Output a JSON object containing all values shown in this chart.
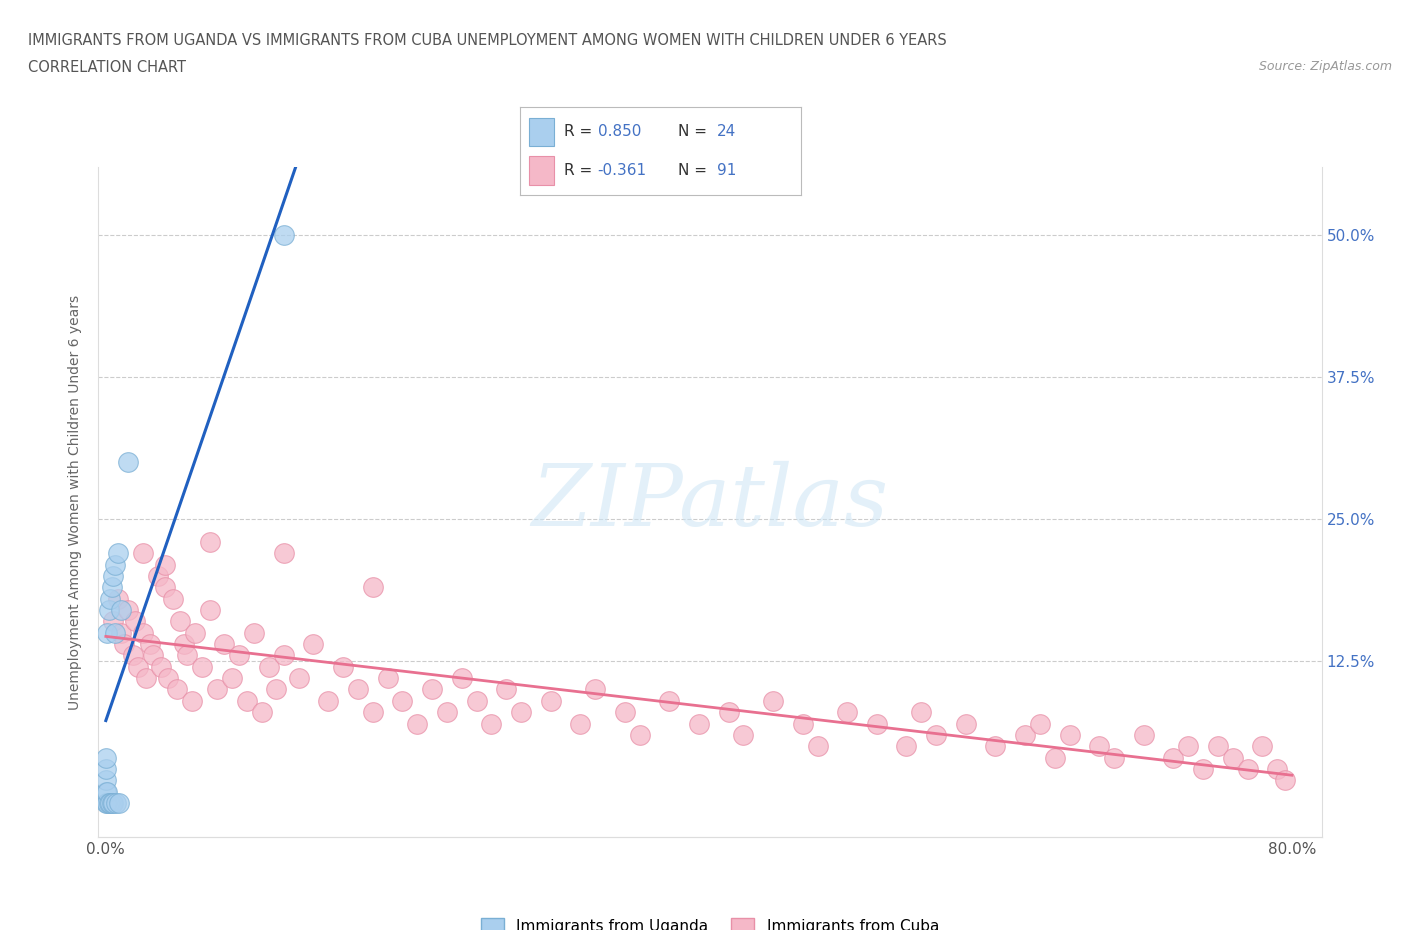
{
  "title_line1": "IMMIGRANTS FROM UGANDA VS IMMIGRANTS FROM CUBA UNEMPLOYMENT AMONG WOMEN WITH CHILDREN UNDER 6 YEARS",
  "title_line2": "CORRELATION CHART",
  "source": "Source: ZipAtlas.com",
  "ylabel": "Unemployment Among Women with Children Under 6 years",
  "xlim": [
    -0.005,
    0.82
  ],
  "ylim": [
    -0.03,
    0.56
  ],
  "xtick_vals": [
    0.0,
    0.2,
    0.4,
    0.6,
    0.8
  ],
  "xticklabels": [
    "0.0%",
    "",
    "",
    "",
    "80.0%"
  ],
  "ytick_vals": [
    0.0,
    0.125,
    0.25,
    0.375,
    0.5
  ],
  "yticklabels_right": [
    "",
    "12.5%",
    "25.0%",
    "37.5%",
    "50.0%"
  ],
  "uganda_color": "#aacfee",
  "uganda_edge_color": "#7aafd4",
  "cuba_color": "#f5b8c8",
  "cuba_edge_color": "#e890a8",
  "uganda_line_color": "#2060c0",
  "cuba_line_color": "#e87090",
  "watermark_text": "ZIPatlas",
  "legend_label_uganda": "Immigrants from Uganda",
  "legend_label_cuba": "Immigrants from Cuba",
  "legend_uganda_color": "#aacfee",
  "legend_cuba_color": "#f5b8c8",
  "uganda_R": "0.850",
  "uganda_N": "24",
  "cuba_R": "-0.361",
  "cuba_N": "91",
  "uganda_x": [
    0.0,
    0.0,
    0.0,
    0.0,
    0.0,
    0.001,
    0.001,
    0.001,
    0.002,
    0.002,
    0.003,
    0.003,
    0.004,
    0.004,
    0.005,
    0.005,
    0.006,
    0.006,
    0.007,
    0.008,
    0.009,
    0.01,
    0.015,
    0.12
  ],
  "uganda_y": [
    0.0,
    0.01,
    0.02,
    0.03,
    0.04,
    0.0,
    0.01,
    0.15,
    0.0,
    0.17,
    0.0,
    0.18,
    0.0,
    0.19,
    0.0,
    0.2,
    0.15,
    0.21,
    0.0,
    0.22,
    0.0,
    0.17,
    0.3,
    0.5
  ],
  "cuba_x": [
    0.005,
    0.008,
    0.01,
    0.012,
    0.015,
    0.018,
    0.02,
    0.022,
    0.025,
    0.027,
    0.03,
    0.032,
    0.035,
    0.037,
    0.04,
    0.042,
    0.045,
    0.048,
    0.05,
    0.053,
    0.055,
    0.058,
    0.06,
    0.065,
    0.07,
    0.075,
    0.08,
    0.085,
    0.09,
    0.095,
    0.1,
    0.105,
    0.11,
    0.115,
    0.12,
    0.13,
    0.14,
    0.15,
    0.16,
    0.17,
    0.18,
    0.19,
    0.2,
    0.21,
    0.22,
    0.23,
    0.24,
    0.25,
    0.26,
    0.27,
    0.28,
    0.3,
    0.32,
    0.33,
    0.35,
    0.36,
    0.38,
    0.4,
    0.42,
    0.43,
    0.45,
    0.47,
    0.48,
    0.5,
    0.52,
    0.54,
    0.55,
    0.56,
    0.58,
    0.6,
    0.62,
    0.63,
    0.64,
    0.65,
    0.67,
    0.68,
    0.7,
    0.72,
    0.73,
    0.74,
    0.75,
    0.76,
    0.77,
    0.78,
    0.79,
    0.795,
    0.025,
    0.04,
    0.07,
    0.12,
    0.18
  ],
  "cuba_y": [
    0.16,
    0.18,
    0.15,
    0.14,
    0.17,
    0.13,
    0.16,
    0.12,
    0.15,
    0.11,
    0.14,
    0.13,
    0.2,
    0.12,
    0.19,
    0.11,
    0.18,
    0.1,
    0.16,
    0.14,
    0.13,
    0.09,
    0.15,
    0.12,
    0.17,
    0.1,
    0.14,
    0.11,
    0.13,
    0.09,
    0.15,
    0.08,
    0.12,
    0.1,
    0.13,
    0.11,
    0.14,
    0.09,
    0.12,
    0.1,
    0.08,
    0.11,
    0.09,
    0.07,
    0.1,
    0.08,
    0.11,
    0.09,
    0.07,
    0.1,
    0.08,
    0.09,
    0.07,
    0.1,
    0.08,
    0.06,
    0.09,
    0.07,
    0.08,
    0.06,
    0.09,
    0.07,
    0.05,
    0.08,
    0.07,
    0.05,
    0.08,
    0.06,
    0.07,
    0.05,
    0.06,
    0.07,
    0.04,
    0.06,
    0.05,
    0.04,
    0.06,
    0.04,
    0.05,
    0.03,
    0.05,
    0.04,
    0.03,
    0.05,
    0.03,
    0.02,
    0.22,
    0.21,
    0.23,
    0.22,
    0.19
  ]
}
